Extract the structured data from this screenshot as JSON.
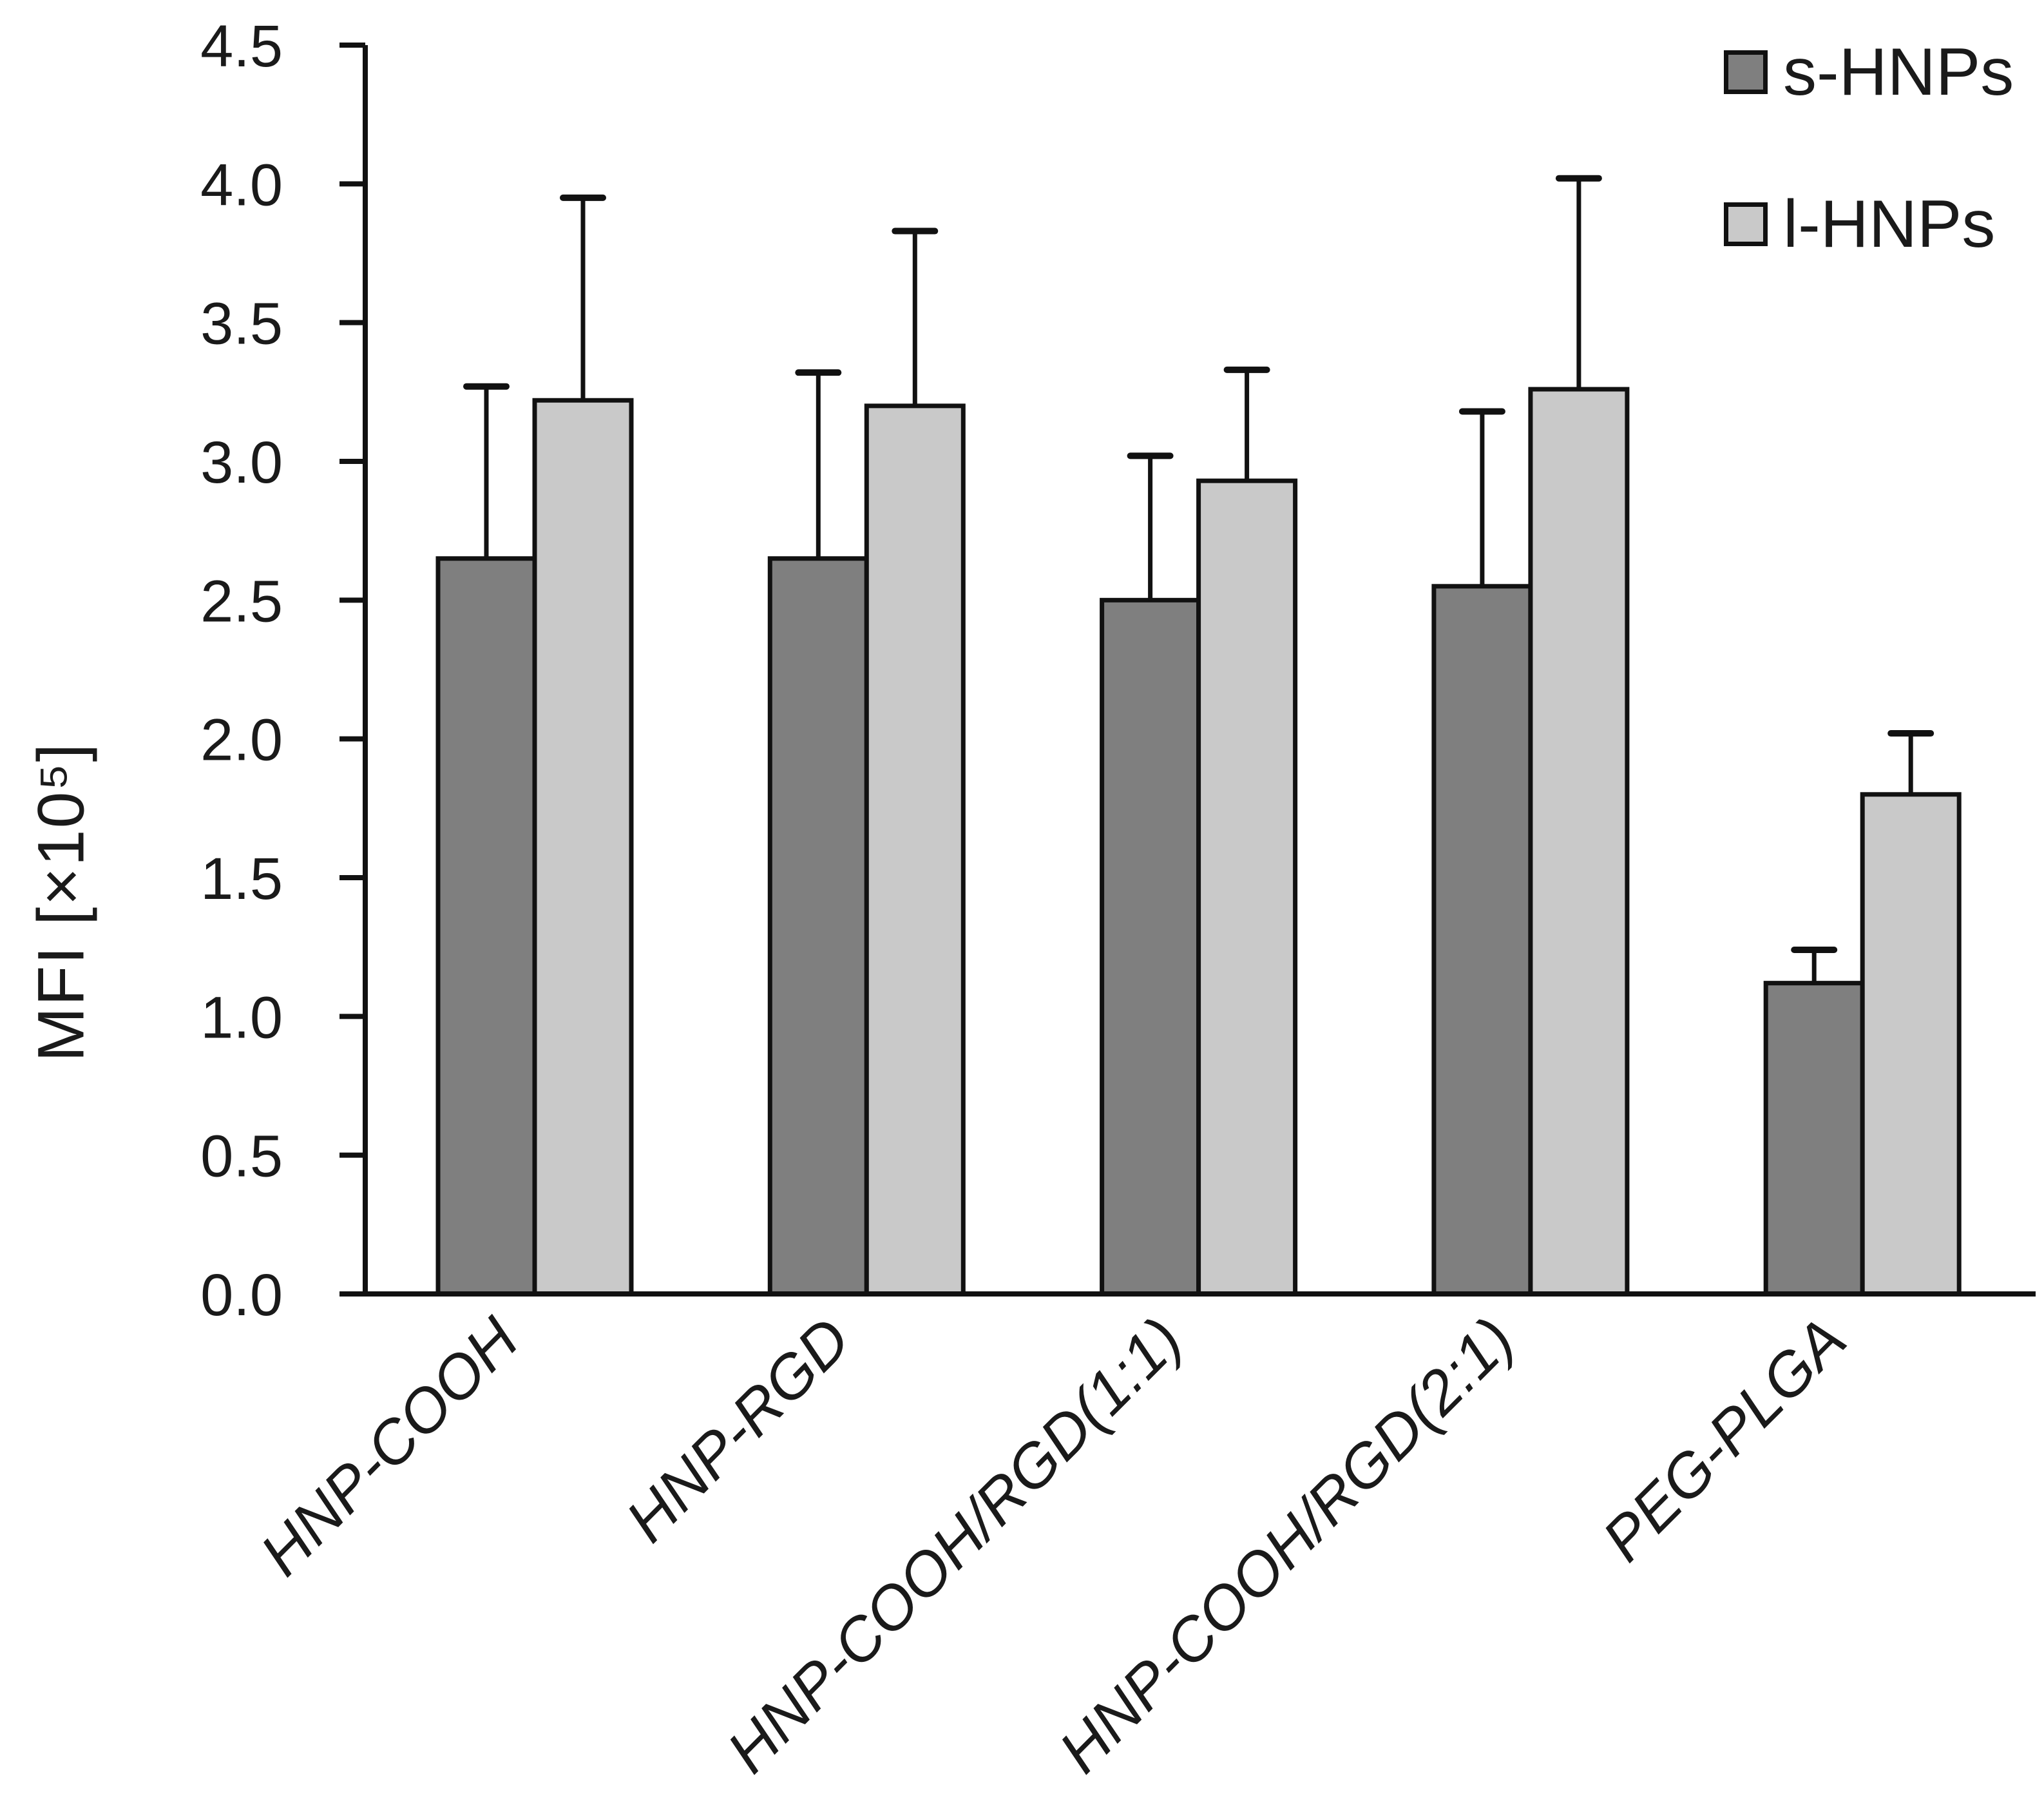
{
  "chart_data": {
    "type": "bar",
    "title": "",
    "xlabel": "",
    "ylabel": "MFI [×10⁵]",
    "categories": [
      "HNP-COOH",
      "HNP-RGD",
      "HNP-COOH/RGD(1:1)",
      "HNP-COOH/RGD(2:1)",
      "PEG-PLGA"
    ],
    "series": [
      {
        "name": "s-HNPs",
        "color": "#7f7f7f",
        "values": [
          2.65,
          2.65,
          2.5,
          2.55,
          1.12
        ],
        "errors": [
          0.62,
          0.67,
          0.52,
          0.63,
          0.12
        ]
      },
      {
        "name": "l-HNPs",
        "color": "#c9c9c9",
        "values": [
          3.22,
          3.2,
          2.93,
          3.26,
          1.8
        ],
        "errors": [
          0.73,
          0.63,
          0.4,
          0.76,
          0.22
        ]
      }
    ],
    "ylim": [
      0,
      4.5
    ],
    "ytick_step": 0.5,
    "yticks": [
      "0.0",
      "0.5",
      "1.0",
      "1.5",
      "2.0",
      "2.5",
      "3.0",
      "3.5",
      "4.0",
      "4.5"
    ],
    "grid": false,
    "legend_position": "top-right",
    "bar_outline_color": "#111111",
    "error_bar_color": "#111111",
    "category_label_style": "italic, rotated 45°"
  }
}
